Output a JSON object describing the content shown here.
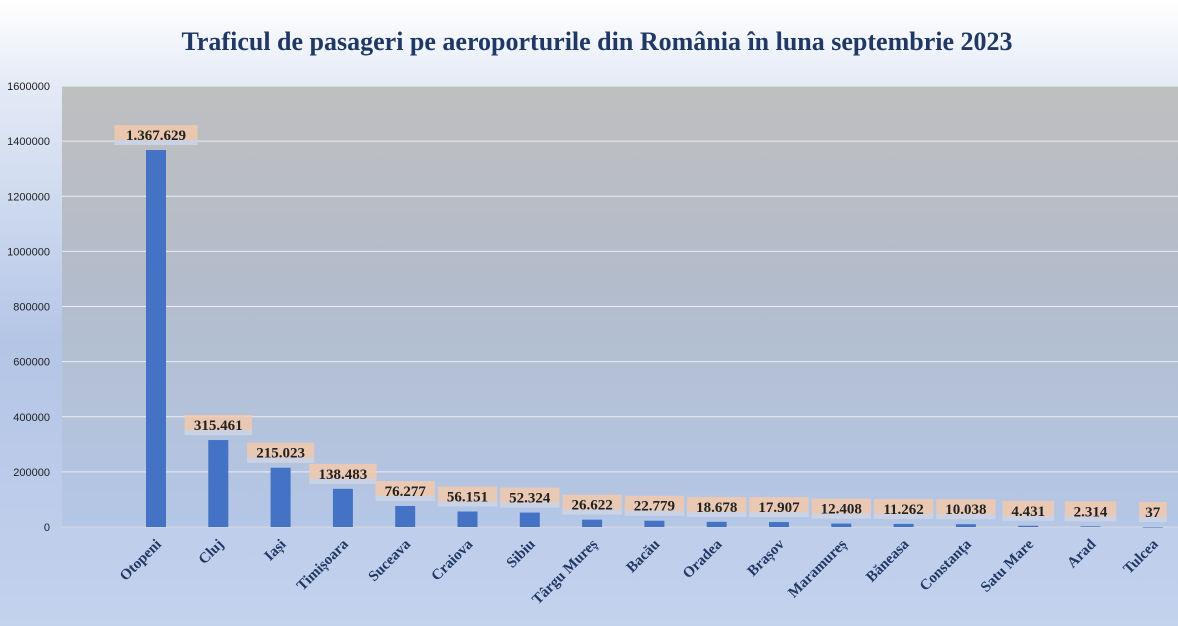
{
  "chart_data": {
    "type": "bar",
    "title": "Traficul de pasageri pe aeroporturile din România în luna septembrie 2023",
    "categories": [
      "Otopeni",
      "Cluj",
      "Iași",
      "Timișoara",
      "Suceava",
      "Craiova",
      "Sibiu",
      "Târgu Mureș",
      "Bacău",
      "Oradea",
      "Brașov",
      "Maramureș",
      "Băneasa",
      "Constanța",
      "Satu Mare",
      "Arad",
      "Tulcea"
    ],
    "values": [
      1367629,
      315461,
      215023,
      138483,
      76277,
      56151,
      52324,
      26622,
      22779,
      18678,
      17907,
      12408,
      11262,
      10038,
      4431,
      2314,
      37
    ],
    "data_labels": [
      "1.367.629",
      "315.461",
      "215.023",
      "138.483",
      "76.277",
      "56.151",
      "52.324",
      "26.622",
      "22.779",
      "18.678",
      "17.907",
      "12.408",
      "11.262",
      "10.038",
      "4.431",
      "2.314",
      "37"
    ],
    "yticks": [
      "0",
      "200000",
      "400000",
      "600000",
      "800000",
      "1000000",
      "1200000",
      "1400000",
      "1600000"
    ],
    "ylim": [
      0,
      1600000
    ],
    "grid": true,
    "legend": "none",
    "colors": {
      "bar": "#4472c4",
      "label_bg": "#f2c9ac",
      "plot_top": "#bfbfbf",
      "plot_bottom": "#b4c7e7",
      "title": "#1f3864"
    }
  }
}
